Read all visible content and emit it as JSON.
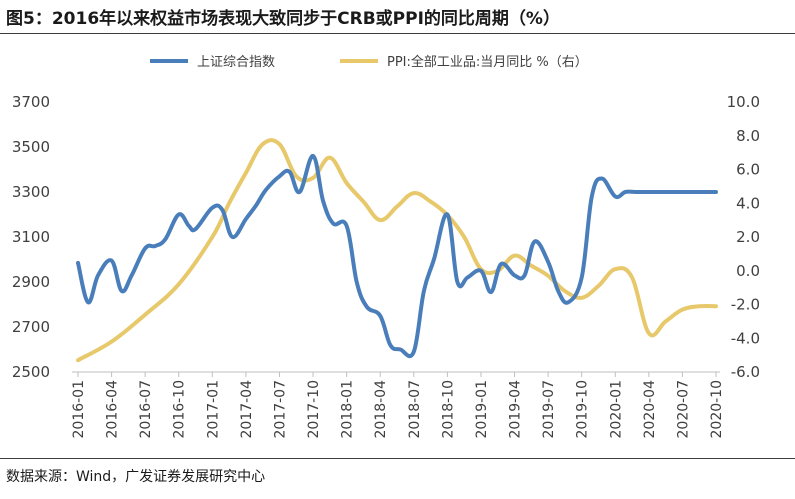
{
  "title": "图5：2016年以来权益市场表现大致同步于CRB或PPI的同比周期（%）",
  "source": "数据来源：Wind，广发证券发展研究中心",
  "chart_data": {
    "type": "line",
    "title": "图5：2016年以来权益市场表现大致同步于CRB或PPI的同比周期（%）",
    "categories": [
      "2016-01",
      "2016-04",
      "2016-07",
      "2016-10",
      "2017-01",
      "2017-04",
      "2017-07",
      "2017-10",
      "2018-01",
      "2018-04",
      "2018-07",
      "2018-10",
      "2019-01",
      "2019-04",
      "2019-07",
      "2019-10",
      "2020-01",
      "2020-04",
      "2020-07",
      "2020-10"
    ],
    "y_left": {
      "ticks": [
        "2500",
        "2700",
        "2900",
        "3100",
        "3300",
        "3500",
        "3700"
      ],
      "ylim": [
        2500,
        3700
      ]
    },
    "y_right": {
      "ticks": [
        "-6.0",
        "-4.0",
        "-2.0",
        "0.0",
        "2.0",
        "4.0",
        "6.0",
        "8.0",
        "10.0"
      ],
      "ylim": [
        -6,
        10
      ]
    },
    "series": [
      {
        "name": "上证综合指数",
        "axis": "left",
        "color": "#4a7ebb",
        "x": [
          0,
          0.3,
          0.6,
          1,
          1.3,
          1.6,
          2,
          2.3,
          2.6,
          3,
          3.3,
          3.5,
          4,
          4.3,
          4.6,
          5,
          5.3,
          5.6,
          6,
          6.3,
          6.6,
          7,
          7.3,
          7.6,
          8,
          8.3,
          8.6,
          9,
          9.3,
          9.6,
          10,
          10.3,
          10.6,
          11,
          11.3,
          11.6,
          12,
          12.3,
          12.6,
          13,
          13.3,
          13.6,
          14,
          14.3,
          14.6,
          15,
          15.3,
          15.6,
          16,
          16.3,
          16.6,
          17,
          17.3,
          17.6,
          18,
          18.3,
          18.6,
          19
        ],
        "values": [
          2985,
          2810,
          2930,
          2995,
          2860,
          2930,
          3050,
          3060,
          3090,
          3200,
          3150,
          3135,
          3230,
          3220,
          3100,
          3180,
          3240,
          3310,
          3370,
          3390,
          3300,
          3460,
          3260,
          3160,
          3150,
          2900,
          2790,
          2750,
          2620,
          2600,
          2590,
          2860,
          3000,
          3200,
          2900,
          2920,
          2950,
          2855,
          2980,
          2930,
          2930,
          3080,
          2990,
          2860,
          2810,
          2920,
          3280,
          3360,
          3280,
          3300,
          3300,
          3300,
          3300,
          3300,
          3300,
          3300,
          3300,
          3300
        ],
        "x_end": 19
      },
      {
        "name": "PPI:全部工业品:当月同比 %（右）",
        "axis": "right",
        "color": "#e7c86a",
        "x": [
          0,
          1,
          2,
          3,
          4,
          4.5,
          5,
          5.5,
          6,
          6.5,
          7,
          7.5,
          8,
          8.5,
          9,
          9.5,
          10,
          10.5,
          11,
          11.5,
          12,
          12.5,
          13,
          13.5,
          14,
          14.5,
          15,
          15.5,
          16,
          16.5,
          17,
          17.5,
          18,
          18.5,
          19
        ],
        "values": [
          -5.3,
          -4.2,
          -2.6,
          -0.8,
          2.0,
          4.0,
          5.8,
          7.5,
          7.5,
          5.6,
          5.5,
          6.7,
          5.2,
          4.1,
          3.0,
          3.8,
          4.6,
          4.1,
          3.3,
          2.0,
          0.1,
          0.0,
          0.9,
          0.3,
          -0.3,
          -1.2,
          -1.6,
          -0.9,
          0.1,
          -0.4,
          -3.7,
          -3.0,
          -2.3,
          -2.1,
          -2.1
        ]
      }
    ],
    "legend": [
      "上证综合指数",
      "PPI:全部工业品:当月同比 %（右）"
    ],
    "legend_position": "top-center",
    "grid": false
  }
}
